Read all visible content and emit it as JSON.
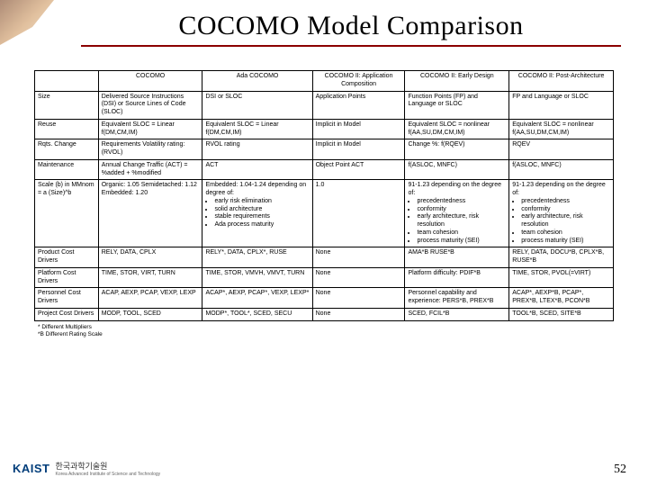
{
  "title": "COCOMO Model Comparison",
  "page_number": "52",
  "logo": {
    "text": "KAIST",
    "korean": "한국과학기술원",
    "sub": "Korea Advanced Institute of Science and Technology"
  },
  "colors": {
    "title_underline": "#8b0000",
    "logo_blue": "#003d7a",
    "border": "#000000"
  },
  "table": {
    "headers": [
      "",
      "COCOMO",
      "Ada COCOMO",
      "COCOMO II: Application Composition",
      "COCOMO II: Early Design",
      "COCOMO II: Post-Architecture"
    ],
    "rows": [
      {
        "label": "Size",
        "cells": [
          "Delivered Source Instructions (DSI) or Source Lines of Code (SLOC)",
          "DSI or SLOC",
          "Application Points",
          "Function Points (FP) and Language or SLOC",
          "FP and Language or SLOC"
        ]
      },
      {
        "label": "Reuse",
        "cells": [
          "Equivalent SLOC = Linear f(DM,CM,IM)",
          "Equivalent SLOC = Linear f(DM,CM,IM)",
          "Implicit in Model",
          "Equivalent SLOC = nonlinear f(AA,SU,DM,CM,IM)",
          "Equivalent SLOC = nonlinear f(AA,SU,DM,CM,IM)"
        ]
      },
      {
        "label": "Rqts. Change",
        "cells": [
          "Requirements Volatility rating: (RVOL)",
          "RVOL rating",
          "Implicit in Model",
          "Change %: f(RQEV)",
          "RQEV"
        ]
      },
      {
        "label": "Maintenance",
        "cells": [
          "Annual Change Traffic (ACT) = %added + %modified",
          "ACT",
          "Object Point ACT",
          "f(ASLOC, MNFC)",
          "f(ASLOC, MNFC)"
        ]
      },
      {
        "label": "Scale (b) in MMnom = a (Size)^b",
        "cells": [
          "Organic: 1.05 Semidetached: 1.12 Embedded: 1.20",
          {
            "text": "Embedded: 1.04-1.24 depending on degree of:",
            "list": [
              "early risk elimination",
              "solid architecture",
              "stable requirements",
              "Ada process maturity"
            ]
          },
          "1.0",
          {
            "text": "91-1.23 depending on the degree of:",
            "list": [
              "precedentedness",
              "conformity",
              "early architecture, risk resolution",
              "team cohesion",
              "process maturity (SEI)"
            ]
          },
          {
            "text": "91-1.23 depending on the degree of:",
            "list": [
              "precedentedness",
              "conformity",
              "early architecture, risk resolution",
              "team cohesion",
              "process maturity (SEI)"
            ]
          }
        ]
      },
      {
        "label": "Product Cost Drivers",
        "cells": [
          "RELY, DATA, CPLX",
          "RELY*, DATA, CPLX*, RUSE",
          "None",
          "AMA*B RUSE*B",
          "RELY, DATA, DOCU*B, CPLX*B, RUSE*B"
        ]
      },
      {
        "label": "Platform Cost Drivers",
        "cells": [
          "TIME, STOR, VIRT, TURN",
          "TIME, STOR, VMVH, VMVT, TURN",
          "None",
          "Platform difficulty: PDIF*B",
          "TIME, STOR, PVOL(=VIRT)"
        ]
      },
      {
        "label": "Personnel Cost Drivers",
        "cells": [
          "ACAP, AEXP, PCAP, VEXP, LEXP",
          "ACAP*, AEXP, PCAP*, VEXP, LEXP*",
          "None",
          "Personnel capability and experience: PERS*B, PREX*B",
          "ACAP*, AEXP*B, PCAP*, PREX*B, LTEX*B, PCON*B"
        ]
      },
      {
        "label": "Project Cost Drivers",
        "cells": [
          "MODP, TOOL, SCED",
          "MODP*, TOOL*, SCED, SECU",
          "None",
          "SCED, FCIL*B",
          "TOOL*B, SCED, SITE*B"
        ]
      }
    ]
  },
  "footnotes": [
    "* Different Multipliers",
    "*B Different Rating Scale"
  ]
}
